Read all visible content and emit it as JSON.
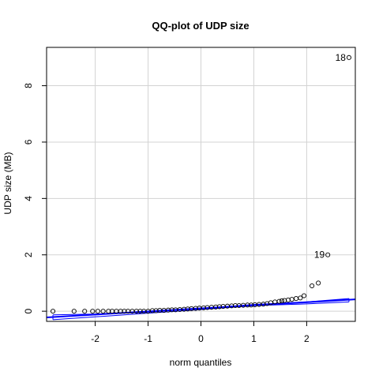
{
  "chart_data": {
    "type": "scatter",
    "title": "QQ-plot of UDP size",
    "xlabel": "norm quantiles",
    "ylabel": "UDP size (MB)",
    "xlim": [
      -2.92,
      2.92
    ],
    "ylim": [
      -0.36,
      9.36
    ],
    "grid": true,
    "x_ticks": [
      -2,
      -1,
      0,
      1,
      2
    ],
    "y_ticks": [
      0,
      2,
      4,
      6,
      8
    ],
    "x_tick_labels": [
      "-2",
      "-1",
      "0",
      "1",
      "2"
    ],
    "y_tick_labels": [
      "0",
      "2",
      "4",
      "6",
      "8"
    ],
    "series": [
      {
        "kind": "points",
        "x": [
          -2.8,
          -2.4,
          -2.2,
          -2.05,
          -1.95,
          -1.85,
          -1.75,
          -1.68,
          -1.6,
          -1.52,
          -1.45,
          -1.38,
          -1.3,
          -1.22,
          -1.15,
          -1.08,
          -1.0,
          -0.92,
          -0.85,
          -0.78,
          -0.7,
          -0.62,
          -0.55,
          -0.48,
          -0.4,
          -0.32,
          -0.25,
          -0.18,
          -0.1,
          -0.03,
          0.05,
          0.12,
          0.2,
          0.28,
          0.35,
          0.42,
          0.5,
          0.58,
          0.65,
          0.72,
          0.8,
          0.88,
          0.95,
          1.02,
          1.1,
          1.18,
          1.25,
          1.32,
          1.4,
          1.48,
          1.53,
          1.58,
          1.65,
          1.72,
          1.8,
          1.88,
          1.95,
          2.1,
          2.22,
          2.4,
          2.8
        ],
        "y": [
          0.0,
          0.0,
          0.0,
          0.0,
          0.0,
          0.0,
          0.0,
          0.0,
          0.0,
          0.0,
          0.0,
          0.0,
          0.0,
          0.0,
          0.0,
          0.0,
          0.0,
          0.02,
          0.02,
          0.03,
          0.03,
          0.04,
          0.05,
          0.05,
          0.06,
          0.07,
          0.08,
          0.09,
          0.1,
          0.11,
          0.12,
          0.13,
          0.14,
          0.15,
          0.16,
          0.17,
          0.18,
          0.19,
          0.2,
          0.2,
          0.21,
          0.22,
          0.22,
          0.23,
          0.24,
          0.25,
          0.27,
          0.3,
          0.33,
          0.35,
          0.37,
          0.38,
          0.4,
          0.42,
          0.45,
          0.47,
          0.55,
          0.9,
          1.0,
          2.0,
          9.0
        ]
      }
    ],
    "point_labels": [
      {
        "x": 2.4,
        "y": 2.0,
        "text": "19"
      },
      {
        "x": 2.8,
        "y": 9.0,
        "text": "18"
      }
    ],
    "reference_line": {
      "x": [
        -2.92,
        2.92
      ],
      "y": [
        -0.22,
        0.42
      ]
    },
    "confidence_band": {
      "x": [
        -2.8,
        -2.0,
        -1.0,
        0.0,
        1.0,
        2.0,
        2.8
      ],
      "upper": [
        -0.13,
        -0.1,
        -0.03,
        0.1,
        0.24,
        0.33,
        0.45
      ],
      "lower": [
        -0.3,
        -0.2,
        -0.07,
        0.06,
        0.2,
        0.26,
        0.33
      ]
    },
    "colors": {
      "points": "#000000",
      "line": "#0000ff",
      "grid": "#d3d3d3",
      "frame": "#000000",
      "band": "#0000ff"
    }
  }
}
